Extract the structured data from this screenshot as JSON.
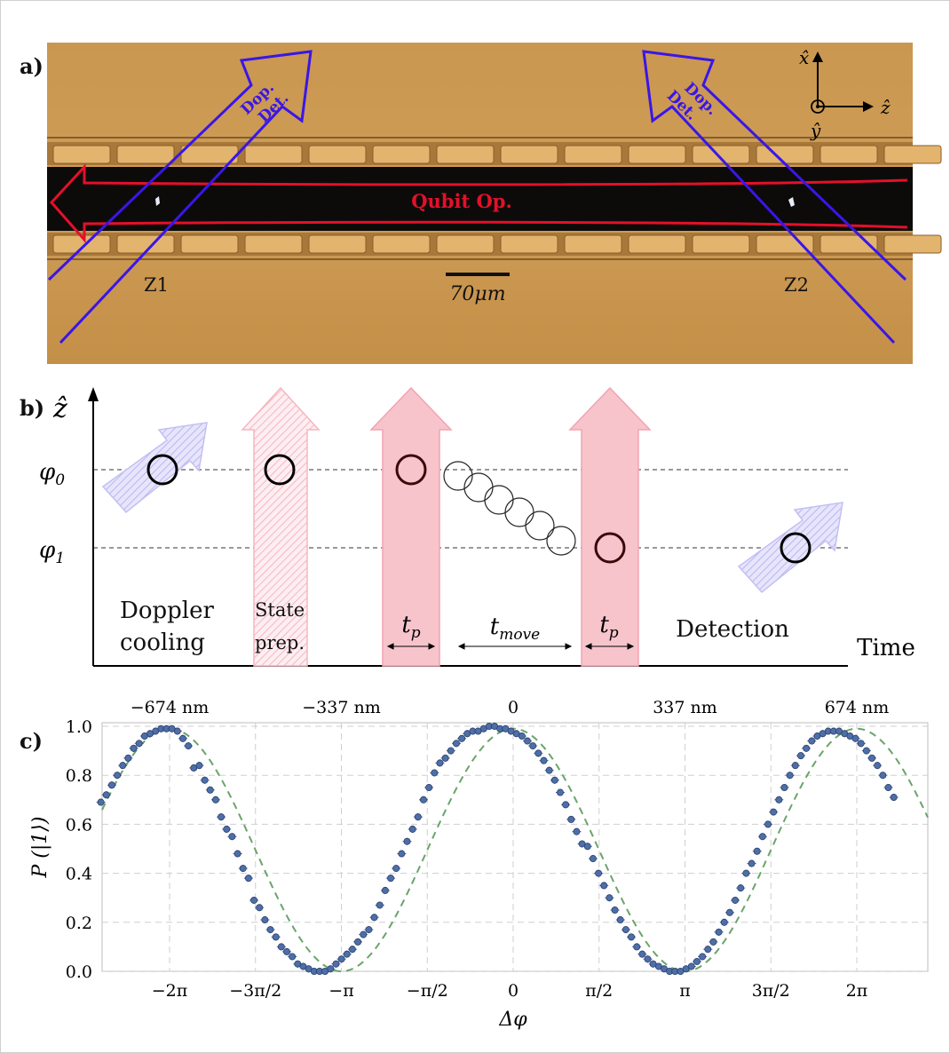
{
  "panels": {
    "a": {
      "label": "a)",
      "beams": {
        "doppler_left": "Dop.\nDet.",
        "doppler_right": "Dop.\nDet.",
        "qubit": "Qubit Op."
      },
      "zones": [
        "Z1",
        "Z2"
      ],
      "scale_bar": "70μm",
      "axes": {
        "x": "x̂",
        "y": "ŷ",
        "z": "ẑ"
      },
      "colors": {
        "doppler": "#3a16e8",
        "qubit": "#e4102a",
        "chip": "#c99a52"
      }
    },
    "b": {
      "label": "b)",
      "axis_y": "ẑ",
      "axis_x": "Time",
      "levels": [
        "φ0",
        "φ1"
      ],
      "steps": [
        {
          "text": "Doppler\ncooling"
        },
        {
          "text": "State\nprep."
        },
        {
          "text": "tp"
        },
        {
          "text": "tmove"
        },
        {
          "text": "tp"
        },
        {
          "text": "Detection"
        }
      ],
      "colors": {
        "doppler": "#b9b4f0",
        "qubit": "#f7a8b5"
      }
    },
    "c": {
      "label": "c)",
      "top_ticks": [
        "−674 nm",
        "−337 nm",
        "0",
        "337 nm",
        "674 nm"
      ],
      "bottom_ticks": [
        "−2π",
        "−3π/2",
        "−π",
        "−π/2",
        "0",
        "π/2",
        "π",
        "3π/2",
        "2π"
      ],
      "y_ticks": [
        "0.0",
        "0.2",
        "0.4",
        "0.6",
        "0.8",
        "1.0"
      ],
      "ylabel": "P (|1⟩)",
      "xlabel": "Δφ"
    }
  },
  "chart_data": {
    "type": "scatter",
    "xlabel": "Δφ",
    "ylabel": "P (|1⟩)",
    "xlim": [
      -7.6,
      7.0
    ],
    "ylim": [
      0,
      1
    ],
    "x_unit": "rad",
    "grid": true,
    "series": [
      {
        "x": [
          -7.54,
          -7.44,
          -7.34,
          -7.24,
          -7.14,
          -7.04,
          -6.94,
          -6.84,
          -6.74,
          -6.64,
          -6.54,
          -6.44,
          -6.34,
          -6.24,
          -6.14,
          -6.04,
          -5.94,
          -5.84,
          -5.74,
          -5.64,
          -5.54,
          -5.44,
          -5.34,
          -5.24,
          -5.14,
          -5.04,
          -4.94,
          -4.84,
          -4.74,
          -4.64,
          -4.54,
          -4.44,
          -4.34,
          -4.24,
          -4.14,
          -4.04,
          -3.94,
          -3.84,
          -3.74,
          -3.64,
          -3.54,
          -3.44,
          -3.34,
          -3.24,
          -3.14,
          -3.04,
          -2.94,
          -2.84,
          -2.74,
          -2.64,
          -2.54,
          -2.44,
          -2.34,
          -2.24,
          -2.14,
          -2.04,
          -1.94,
          -1.84,
          -1.74,
          -1.64,
          -1.54,
          -1.44,
          -1.34,
          -1.24,
          -1.14,
          -1.04,
          -0.94,
          -0.84,
          -0.74,
          -0.64,
          -0.54,
          -0.44,
          -0.34,
          -0.24,
          -0.14,
          -0.04,
          0.06,
          0.16,
          0.26,
          0.36,
          0.46,
          0.56,
          0.66,
          0.76,
          0.86,
          0.96,
          1.06,
          1.16,
          1.26,
          1.36,
          1.46,
          1.56,
          1.66,
          1.76,
          1.86,
          1.96,
          2.06,
          2.16,
          2.26,
          2.36,
          2.46,
          2.56,
          2.66,
          2.76,
          2.86,
          2.96,
          3.06,
          3.16,
          3.26,
          3.36,
          3.46,
          3.56,
          3.66,
          3.76,
          3.86,
          3.96,
          4.06,
          4.16,
          4.26,
          4.36,
          4.46,
          4.56,
          4.66,
          4.76,
          4.86,
          4.96,
          5.06,
          5.16,
          5.26,
          5.36,
          5.46,
          5.56,
          5.66,
          5.76,
          5.86,
          5.96,
          6.06,
          6.16,
          6.26,
          6.36,
          6.46,
          6.56,
          6.66,
          6.76,
          6.86,
          6.96
        ],
        "y": [
          0.69,
          0.72,
          0.76,
          0.8,
          0.84,
          0.87,
          0.91,
          0.93,
          0.96,
          0.97,
          0.98,
          0.99,
          0.99,
          0.99,
          0.98,
          0.95,
          0.92,
          0.83,
          0.84,
          0.78,
          0.74,
          0.7,
          0.63,
          0.58,
          0.55,
          0.48,
          0.42,
          0.38,
          0.29,
          0.26,
          0.21,
          0.17,
          0.14,
          0.1,
          0.08,
          0.06,
          0.03,
          0.02,
          0.01,
          0.0,
          0.0,
          0.0,
          0.01,
          0.03,
          0.05,
          0.07,
          0.09,
          0.12,
          0.15,
          0.17,
          0.22,
          0.27,
          0.33,
          0.38,
          0.42,
          0.48,
          0.53,
          0.58,
          0.63,
          0.7,
          0.75,
          0.81,
          0.85,
          0.87,
          0.9,
          0.93,
          0.95,
          0.97,
          0.98,
          0.98,
          0.99,
          1.0,
          1.0,
          0.99,
          0.99,
          0.98,
          0.97,
          0.96,
          0.94,
          0.92,
          0.89,
          0.86,
          0.82,
          0.78,
          0.73,
          0.68,
          0.62,
          0.57,
          0.52,
          0.51,
          0.46,
          0.4,
          0.35,
          0.3,
          0.25,
          0.21,
          0.17,
          0.14,
          0.1,
          0.07,
          0.05,
          0.03,
          0.02,
          0.01,
          0.0,
          0.0,
          0.0,
          0.01,
          0.02,
          0.04,
          0.06,
          0.09,
          0.12,
          0.16,
          0.2,
          0.24,
          0.29,
          0.34,
          0.4,
          0.44,
          0.49,
          0.55,
          0.6,
          0.65,
          0.7,
          0.75,
          0.8,
          0.84,
          0.88,
          0.91,
          0.94,
          0.96,
          0.97,
          0.98,
          0.98,
          0.98,
          0.97,
          0.96,
          0.95,
          0.93,
          0.9,
          0.87,
          0.84,
          0.8,
          0.75,
          0.71
        ]
      }
    ],
    "fit": {
      "form": "0.495 + 0.495*cos(x)",
      "style": "dashed",
      "color": "#6aa46a"
    }
  }
}
